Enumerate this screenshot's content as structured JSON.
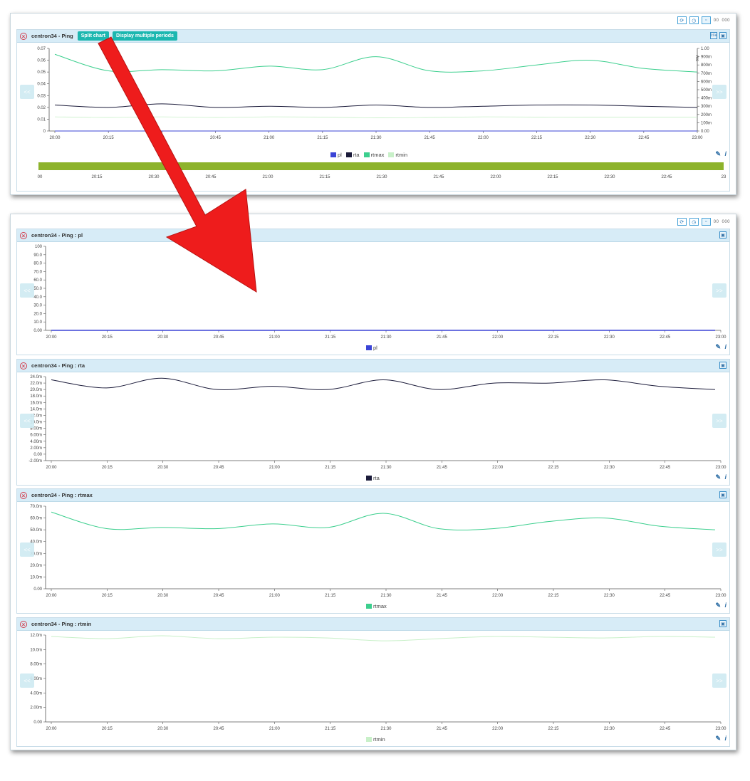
{
  "top_chart": {
    "title": "centron34 - Ping",
    "split_label": "Split chart",
    "multi_label": "Display multiple periods",
    "left_ticks": [
      "0.07",
      "0.06",
      "0.05",
      "0.04",
      "0.03",
      "0.02",
      "0.01",
      "0"
    ],
    "right_ticks": [
      "1.00",
      "900m",
      "800m",
      "700m",
      "600m",
      "500m",
      "400m",
      "300m",
      "200m",
      "100m",
      "0.00"
    ],
    "right_unit": "ms",
    "x_ticks": [
      "20:00",
      "20:15",
      "",
      "20:45",
      "21:00",
      "21:15",
      "21:30",
      "21:45",
      "22:00",
      "22:15",
      "22:30",
      "22:45",
      "23:00"
    ],
    "nav_ticks": [
      "00",
      "20:15",
      "20:30",
      "20:45",
      "21:00",
      "21:15",
      "21:30",
      "21:45",
      "22:00",
      "22:15",
      "22:30",
      "22:45",
      "23"
    ],
    "legend": [
      "pl",
      "rta",
      "rtmax",
      "rtmin"
    ]
  },
  "toolbar": {
    "label_a": "00",
    "label_b": "000"
  },
  "colors": {
    "pl": "#3b44d6",
    "rta": "#1b1b3a",
    "rtmax": "#3ccf8e",
    "rtmin": "#c8f0c8",
    "navbar": "#8db32c",
    "arrow": "#ee1c1c"
  },
  "panels": [
    {
      "title": "centron34 - Ping : pl",
      "legend": "pl",
      "color_key": "pl",
      "y_ticks": [
        "100",
        "90.0",
        "80.0",
        "70.0",
        "60.0",
        "50.0",
        "40.0",
        "30.0",
        "20.0",
        "10.0",
        "0.00"
      ]
    },
    {
      "title": "centron34 - Ping : rta",
      "legend": "rta",
      "color_key": "rta",
      "y_ticks": [
        "24.0m",
        "22.0m",
        "20.0m",
        "18.0m",
        "16.0m",
        "14.0m",
        "12.0m",
        "10.0m",
        "8.00m",
        "6.00m",
        "4.00m",
        "2.00m",
        "0.00",
        "-2.00m"
      ]
    },
    {
      "title": "centron34 - Ping : rtmax",
      "legend": "rtmax",
      "color_key": "rtmax",
      "y_ticks": [
        "70.0m",
        "60.0m",
        "50.0m",
        "40.0m",
        "30.0m",
        "20.0m",
        "10.0m",
        "0.00"
      ]
    },
    {
      "title": "centron34 - Ping : rtmin",
      "legend": "rtmin",
      "color_key": "rtmin",
      "y_ticks": [
        "12.0m",
        "10.0m",
        "8.00m",
        "6.00m",
        "4.00m",
        "2.00m",
        "0.00"
      ]
    }
  ],
  "panel_x_ticks": [
    "20:00",
    "20:15",
    "20:30",
    "20:45",
    "21:00",
    "21:15",
    "21:30",
    "21:45",
    "22:00",
    "22:15",
    "22:30",
    "22:45",
    "23:00"
  ],
  "chart_data": [
    {
      "type": "line",
      "title": "centron34 - Ping",
      "x": [
        "20:00",
        "20:15",
        "20:30",
        "20:45",
        "21:00",
        "21:15",
        "21:30",
        "21:45",
        "22:00",
        "22:15",
        "22:30",
        "22:45",
        "23:00"
      ],
      "ylim": [
        0,
        0.07
      ],
      "series": [
        {
          "name": "pl",
          "values": [
            0,
            0,
            0,
            0,
            0,
            0,
            0,
            0,
            0,
            0,
            0,
            0,
            0
          ]
        },
        {
          "name": "rta",
          "values": [
            0.022,
            0.02,
            0.023,
            0.02,
            0.021,
            0.02,
            0.022,
            0.02,
            0.021,
            0.022,
            0.022,
            0.021,
            0.02
          ]
        },
        {
          "name": "rtmax",
          "values": [
            0.065,
            0.051,
            0.052,
            0.051,
            0.055,
            0.052,
            0.063,
            0.051,
            0.051,
            0.056,
            0.06,
            0.053,
            0.05
          ]
        },
        {
          "name": "rtmin",
          "values": [
            0.012,
            0.0115,
            0.012,
            0.0115,
            0.012,
            0.0118,
            0.0112,
            0.0115,
            0.012,
            0.0118,
            0.0118,
            0.0118,
            0.0118
          ]
        }
      ]
    },
    {
      "type": "line",
      "title": "centron34 - Ping : pl",
      "x": [
        "20:00",
        "20:15",
        "20:30",
        "20:45",
        "21:00",
        "21:15",
        "21:30",
        "21:45",
        "22:00",
        "22:15",
        "22:30",
        "22:45",
        "23:00"
      ],
      "ylim": [
        0,
        100
      ],
      "series": [
        {
          "name": "pl",
          "values": [
            0,
            0,
            0,
            0,
            0,
            0,
            0,
            0,
            0,
            0,
            0,
            0,
            0
          ]
        }
      ]
    },
    {
      "type": "line",
      "title": "centron34 - Ping : rta",
      "x": [
        "20:00",
        "20:15",
        "20:30",
        "20:45",
        "21:00",
        "21:15",
        "21:30",
        "21:45",
        "22:00",
        "22:15",
        "22:30",
        "22:45",
        "23:00"
      ],
      "ylim": [
        -2,
        24
      ],
      "series": [
        {
          "name": "rta",
          "values": [
            23,
            20.5,
            23.5,
            20,
            21,
            20,
            23,
            20,
            22,
            22,
            23,
            21,
            20
          ]
        }
      ]
    },
    {
      "type": "line",
      "title": "centron34 - Ping : rtmax",
      "x": [
        "20:00",
        "20:15",
        "20:30",
        "20:45",
        "21:00",
        "21:15",
        "21:30",
        "21:45",
        "22:00",
        "22:15",
        "22:30",
        "22:45",
        "23:00"
      ],
      "ylim": [
        0,
        70
      ],
      "series": [
        {
          "name": "rtmax",
          "values": [
            65,
            51,
            52,
            51,
            55,
            52,
            64,
            51,
            51,
            57,
            60,
            53,
            50
          ]
        }
      ]
    },
    {
      "type": "line",
      "title": "centron34 - Ping : rtmin",
      "x": [
        "20:00",
        "20:15",
        "20:30",
        "20:45",
        "21:00",
        "21:15",
        "21:30",
        "21:45",
        "22:00",
        "22:15",
        "22:30",
        "22:45",
        "23:00"
      ],
      "ylim": [
        0,
        12
      ],
      "series": [
        {
          "name": "rtmin",
          "values": [
            11.8,
            11.5,
            11.9,
            11.5,
            11.7,
            11.6,
            11.2,
            11.5,
            11.8,
            11.7,
            11.6,
            11.8,
            11.7
          ]
        }
      ]
    }
  ]
}
